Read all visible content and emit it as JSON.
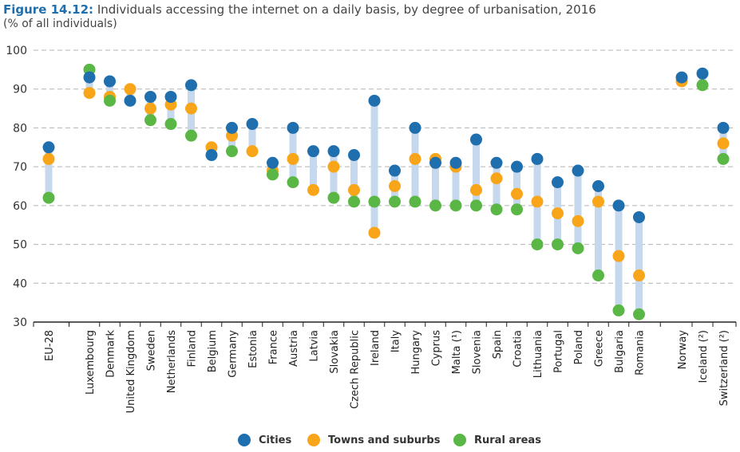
{
  "title": {
    "figure_number": "Figure 14.12:",
    "text": " Individuals accessing the internet on a daily basis, by degree of urbanisation, 2016",
    "subtitle": "(% of all individuals)"
  },
  "colors": {
    "cities": "#1f6fae",
    "towns": "#f9a51a",
    "rural": "#5ab745",
    "range_bar": "#c5d8ee",
    "grid": "#b3b3b3",
    "axis": "#222222"
  },
  "legend": {
    "cities": "Cities",
    "towns": "Towns and suburbs",
    "rural": "Rural areas"
  },
  "chart_data": {
    "type": "scatter",
    "ylim": [
      30,
      100
    ],
    "yticks": [
      30,
      40,
      50,
      60,
      70,
      80,
      90,
      100
    ],
    "grid": true,
    "legend_position": "bottom",
    "categories": [
      "EU-28",
      "Luxembourg",
      "Denmark",
      "United Kingdom",
      "Sweden",
      "Netherlands",
      "Finland",
      "Belgium",
      "Germany",
      "Estonia",
      "France",
      "Austria",
      "Latvia",
      "Slovakia",
      "Czech Republic",
      "Ireland",
      "Italy",
      "Hungary",
      "Cyprus",
      "Malta (¹)",
      "Slovenia",
      "Spain",
      "Croatia",
      "Lithuania",
      "Portugal",
      "Poland",
      "Greece",
      "Bulgaria",
      "Romania",
      "Norway",
      "Iceland (²)",
      "Switzerland (²)"
    ],
    "series": [
      {
        "name": "Cities",
        "values": [
          75,
          93,
          92,
          87,
          88,
          88,
          91,
          73,
          80,
          81,
          71,
          80,
          74,
          74,
          73,
          87,
          69,
          80,
          71,
          71,
          77,
          71,
          70,
          72,
          66,
          69,
          65,
          60,
          57,
          93,
          94,
          80
        ]
      },
      {
        "name": "Towns and suburbs",
        "values": [
          72,
          89,
          88,
          90,
          85,
          86,
          85,
          75,
          78,
          74,
          69,
          72,
          64,
          70,
          64,
          53,
          65,
          72,
          72,
          70,
          64,
          67,
          63,
          61,
          58,
          56,
          61,
          47,
          42,
          92,
          null,
          76
        ]
      },
      {
        "name": "Rural areas",
        "values": [
          62,
          95,
          87,
          null,
          82,
          81,
          78,
          null,
          74,
          null,
          68,
          66,
          null,
          62,
          61,
          61,
          61,
          61,
          60,
          60,
          60,
          59,
          59,
          50,
          50,
          49,
          42,
          33,
          32,
          null,
          91,
          72
        ]
      }
    ]
  }
}
